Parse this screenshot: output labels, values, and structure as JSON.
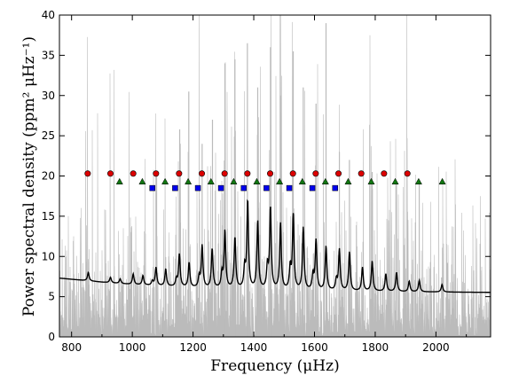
{
  "chart_data": {
    "type": "line",
    "xlabel": "Frequency (μHz)",
    "ylabel": "Power spectral density (ppm² μHz⁻¹)",
    "xlim": [
      760,
      2180
    ],
    "ylim": [
      0,
      40
    ],
    "x_ticks": [
      800,
      1000,
      1200,
      1400,
      1600,
      1800,
      2000
    ],
    "y_ticks": [
      0,
      5,
      10,
      15,
      20,
      25,
      30,
      35,
      40
    ],
    "grid": false,
    "colors": {
      "spectrum": "#bbbbbb",
      "model": "#000000",
      "l0": "#dd0000",
      "l1": "#117711",
      "l2": "#0000ee"
    },
    "background_model": {
      "x": [
        760,
        900,
        1000,
        1100,
        1200,
        1300,
        1400,
        1500,
        1600,
        1700,
        1800,
        1900,
        2000,
        2100,
        2180
      ],
      "y": [
        7.3,
        6.8,
        6.5,
        6.3,
        6.1,
        6.0,
        5.9,
        5.8,
        5.75,
        5.7,
        5.65,
        5.6,
        5.58,
        5.55,
        5.53
      ]
    },
    "model_peaks": [
      {
        "x": 855,
        "height": 8.0
      },
      {
        "x": 928,
        "height": 7.4
      },
      {
        "x": 960,
        "height": 7.2
      },
      {
        "x": 1003,
        "height": 7.8
      },
      {
        "x": 1035,
        "height": 7.6
      },
      {
        "x": 1066,
        "height": 6.9
      },
      {
        "x": 1078,
        "height": 8.6
      },
      {
        "x": 1110,
        "height": 8.4
      },
      {
        "x": 1145,
        "height": 7.1
      },
      {
        "x": 1155,
        "height": 10.2
      },
      {
        "x": 1187,
        "height": 9.2
      },
      {
        "x": 1220,
        "height": 7.4
      },
      {
        "x": 1230,
        "height": 11.3
      },
      {
        "x": 1263,
        "height": 10.9
      },
      {
        "x": 1295,
        "height": 7.8
      },
      {
        "x": 1305,
        "height": 13.1
      },
      {
        "x": 1338,
        "height": 12.3
      },
      {
        "x": 1370,
        "height": 8.4
      },
      {
        "x": 1380,
        "height": 16.8
      },
      {
        "x": 1413,
        "height": 14.3
      },
      {
        "x": 1445,
        "height": 8.6
      },
      {
        "x": 1455,
        "height": 15.9
      },
      {
        "x": 1488,
        "height": 14.0
      },
      {
        "x": 1520,
        "height": 8.4
      },
      {
        "x": 1530,
        "height": 15.0
      },
      {
        "x": 1563,
        "height": 13.5
      },
      {
        "x": 1595,
        "height": 7.6
      },
      {
        "x": 1605,
        "height": 11.9
      },
      {
        "x": 1638,
        "height": 11.2
      },
      {
        "x": 1672,
        "height": 7.0
      },
      {
        "x": 1682,
        "height": 10.8
      },
      {
        "x": 1715,
        "height": 10.5
      },
      {
        "x": 1758,
        "height": 8.6
      },
      {
        "x": 1790,
        "height": 9.4
      },
      {
        "x": 1835,
        "height": 7.8
      },
      {
        "x": 1870,
        "height": 8.0
      },
      {
        "x": 1912,
        "height": 6.9
      },
      {
        "x": 1945,
        "height": 7.0
      },
      {
        "x": 2020,
        "height": 6.5
      }
    ],
    "spectrum_spikes": [
      {
        "x": 1080,
        "y": 20.5
      },
      {
        "x": 1156,
        "y": 25.8
      },
      {
        "x": 1186,
        "y": 30.5
      },
      {
        "x": 1230,
        "y": 24.0
      },
      {
        "x": 1264,
        "y": 27.0
      },
      {
        "x": 1305,
        "y": 34.0
      },
      {
        "x": 1338,
        "y": 34.5
      },
      {
        "x": 1379,
        "y": 36.5
      },
      {
        "x": 1413,
        "y": 31.0
      },
      {
        "x": 1455,
        "y": 36.0
      },
      {
        "x": 1488,
        "y": 30.0
      },
      {
        "x": 1530,
        "y": 35.5
      },
      {
        "x": 1563,
        "y": 31.0
      },
      {
        "x": 1605,
        "y": 29.0
      },
      {
        "x": 1638,
        "y": 39.0
      },
      {
        "x": 1682,
        "y": 23.0
      },
      {
        "x": 1715,
        "y": 22.0
      },
      {
        "x": 1790,
        "y": 20.5
      },
      {
        "x": 1870,
        "y": 19.0
      },
      {
        "x": 1945,
        "y": 19.5
      }
    ],
    "markers": {
      "l0": {
        "shape": "circle",
        "y": 20.3,
        "x": [
          853,
          928,
          1003,
          1078,
          1154,
          1229,
          1304,
          1379,
          1454,
          1529,
          1604,
          1679,
          1754,
          1829,
          1906
        ]
      },
      "l1": {
        "shape": "triangle",
        "y": 19.3,
        "x": [
          958,
          1033,
          1108,
          1184,
          1259,
          1334,
          1410,
          1485,
          1560,
          1636,
          1711,
          1787,
          1866,
          1943,
          2021
        ]
      },
      "l2": {
        "shape": "square",
        "y": 18.5,
        "x": [
          1066,
          1141,
          1216,
          1292,
          1367,
          1442,
          1517,
          1593,
          1668
        ]
      }
    }
  }
}
